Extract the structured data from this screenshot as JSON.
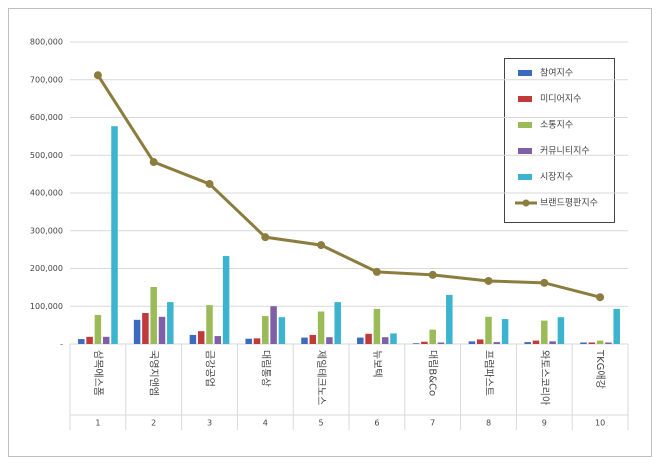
{
  "chart_data": {
    "type": "bar",
    "categories": [
      "삼목에스폼",
      "국영지앤엠",
      "금강공업",
      "대림통상",
      "제일테크노스",
      "뉴보텍",
      "대림B&Co",
      "프럼파스트",
      "와토스코리아",
      "TKG애강"
    ],
    "ranks": [
      "1",
      "2",
      "3",
      "4",
      "5",
      "6",
      "7",
      "8",
      "9",
      "10"
    ],
    "series": [
      {
        "name": "참여지수",
        "color": "#3a6bbf",
        "values": [
          13000,
          64000,
          24000,
          14000,
          17000,
          17000,
          2000,
          7000,
          5000,
          4000
        ]
      },
      {
        "name": "미디어지수",
        "color": "#c0393b",
        "values": [
          19000,
          82000,
          34000,
          15000,
          24000,
          27000,
          6000,
          12000,
          9000,
          4000
        ]
      },
      {
        "name": "소통지수",
        "color": "#9bbb59",
        "values": [
          77000,
          151000,
          103000,
          74000,
          86000,
          93000,
          38000,
          72000,
          62000,
          9000
        ]
      },
      {
        "name": "커뮤니티지수",
        "color": "#7f5fa8",
        "values": [
          19000,
          72000,
          21000,
          100000,
          18000,
          18000,
          4000,
          5000,
          7000,
          4000
        ]
      },
      {
        "name": "시장지수",
        "color": "#3cb4cf",
        "values": [
          577000,
          111000,
          233000,
          71000,
          111000,
          28000,
          130000,
          66000,
          71000,
          93000
        ]
      },
      {
        "name": "브랜드평판지수",
        "type": "line",
        "color": "#8b7d3e",
        "values": [
          712000,
          482000,
          424000,
          283000,
          262000,
          191000,
          183000,
          167000,
          162000,
          124000
        ]
      }
    ],
    "ylim": [
      0,
      800000
    ],
    "yticks": [
      {
        "value": 0,
        "label": "-"
      },
      {
        "value": 100000,
        "label": "100,000"
      },
      {
        "value": 200000,
        "label": "200,000"
      },
      {
        "value": 300000,
        "label": "300,000"
      },
      {
        "value": 400000,
        "label": "400,000"
      },
      {
        "value": 500000,
        "label": "500,000"
      },
      {
        "value": 600000,
        "label": "600,000"
      },
      {
        "value": 700000,
        "label": "700,000"
      },
      {
        "value": 800000,
        "label": "800,000"
      }
    ],
    "grid": true
  }
}
